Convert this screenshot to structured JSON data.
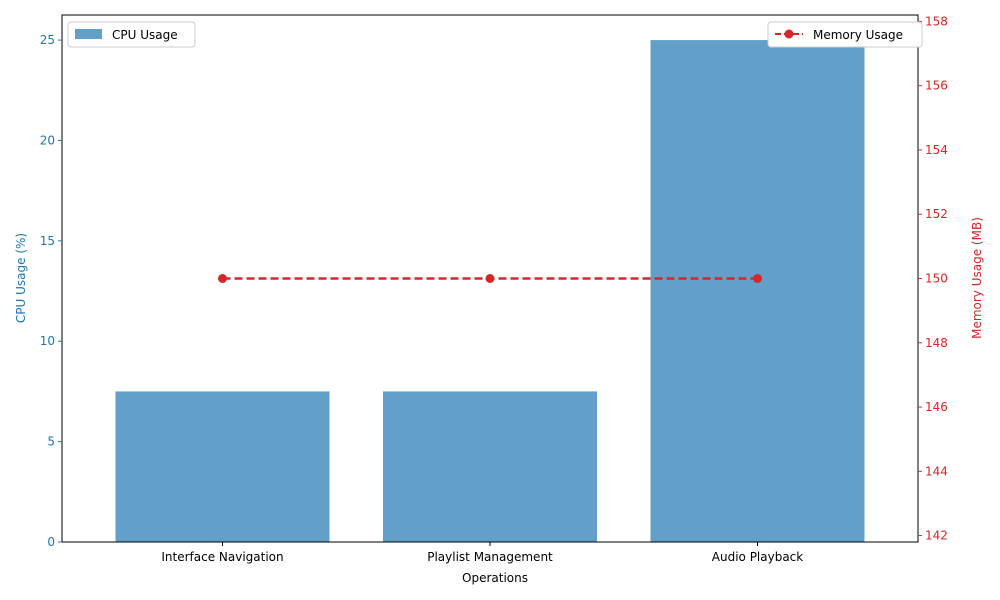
{
  "chart_data": {
    "type": "bar",
    "categories": [
      "Interface Navigation",
      "Playlist Management",
      "Audio Playback"
    ],
    "xlabel": "Operations",
    "series": [
      {
        "name": "CPU Usage",
        "kind": "bar",
        "axis": "left",
        "values": [
          7.5,
          7.5,
          25
        ],
        "color": "#1f77b4"
      },
      {
        "name": "Memory Usage",
        "kind": "line",
        "axis": "right",
        "values": [
          150,
          150,
          150
        ],
        "color": "#d62728",
        "line_style": "dashed",
        "marker": "circle"
      }
    ],
    "left_axis": {
      "label": "CPU Usage (%)",
      "ylim": [
        0,
        26.25
      ],
      "ticks": [
        0,
        5,
        10,
        15,
        20,
        25
      ],
      "color": "#1f77b4"
    },
    "right_axis": {
      "label": "Memory Usage (MB)",
      "ylim": [
        141.8,
        158.2
      ],
      "ticks": [
        142,
        144,
        146,
        148,
        150,
        152,
        154,
        156,
        158
      ],
      "color": "#d62728"
    },
    "legend_left": {
      "label": "CPU Usage",
      "placement": "top-left"
    },
    "legend_right": {
      "label": "Memory Usage",
      "placement": "top-right"
    },
    "grid": false
  }
}
